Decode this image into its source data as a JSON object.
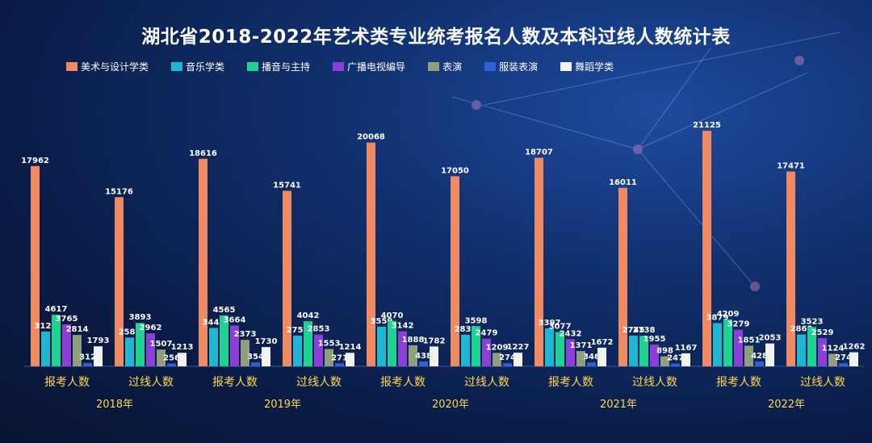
{
  "chart_data": {
    "type": "bar",
    "title": "湖北省2018-2022年艺术类专业统考报名人数及本科过线人数统计表",
    "categories": [
      "报考人数",
      "过线人数",
      "报考人数",
      "过线人数",
      "报考人数",
      "过线人数",
      "报考人数",
      "过线人数",
      "报考人数",
      "过线人数"
    ],
    "groups": [
      "2018年",
      "2019年",
      "2020年",
      "2021年",
      "2022年"
    ],
    "series": [
      {
        "name": "美术与设计学类",
        "color": "#f08a62",
        "values": [
          17962,
          15176,
          18616,
          15741,
          20068,
          17050,
          18707,
          16011,
          21125,
          17471
        ]
      },
      {
        "name": "音乐学类",
        "color": "#1fb6d2",
        "values": [
          3125,
          2582,
          3442,
          2758,
          3559,
          2831,
          3397,
          2745,
          3879,
          2860
        ]
      },
      {
        "name": "播音与主持",
        "color": "#1fd291",
        "values": [
          4617,
          3893,
          4565,
          4042,
          4070,
          3598,
          3077,
          2738,
          4209,
          3523
        ]
      },
      {
        "name": "广播电视编导",
        "color": "#8b3fd6",
        "values": [
          3765,
          2962,
          3664,
          2853,
          3142,
          2479,
          2432,
          1955,
          3279,
          2529
        ]
      },
      {
        "name": "表演",
        "color": "#8f9f7d",
        "values": [
          2814,
          1507,
          2373,
          1553,
          1888,
          1209,
          1371,
          898,
          1851,
          1124
        ]
      },
      {
        "name": "服装表演",
        "color": "#2f62d8",
        "values": [
          312,
          256,
          354,
          271,
          438,
          274,
          346,
          247,
          428,
          274
        ]
      },
      {
        "name": "舞蹈学类",
        "color": "#f2f2f2",
        "values": [
          1793,
          1213,
          1730,
          1214,
          1782,
          1227,
          1672,
          1167,
          2053,
          1262
        ]
      }
    ],
    "ylim": [
      0,
      22000
    ],
    "grid": false,
    "legend_position": "top"
  }
}
